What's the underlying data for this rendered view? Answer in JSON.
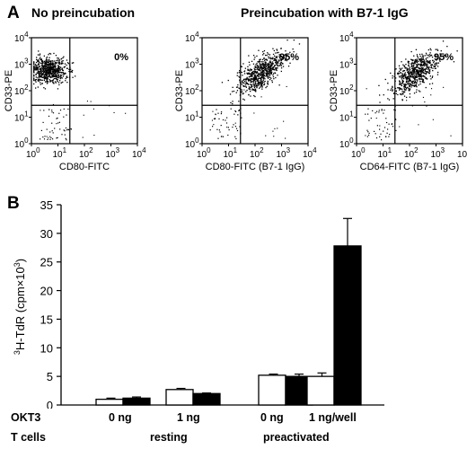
{
  "panel_a": {
    "letter": "A",
    "header_left": "No preincubation",
    "header_right": "Preincubation with B7-1 IgG",
    "plots": [
      {
        "ylabel": "CD33-PE",
        "xlabel": "CD80-FITC",
        "percent": "0%",
        "cluster": "upper-left"
      },
      {
        "ylabel": "CD33-PE",
        "xlabel": "CD80-FITC (B7-1 IgG)",
        "percent": "95%",
        "cluster": "upper-right"
      },
      {
        "ylabel": "CD33-PE",
        "xlabel": "CD64-FITC (B7-1 IgG)",
        "percent": "95%",
        "cluster": "upper-right"
      }
    ],
    "tick_base": "10",
    "tick_exponents": [
      "0",
      "1",
      "2",
      "3",
      "4"
    ]
  },
  "panel_b": {
    "letter": "B",
    "row_okt3": {
      "label": "OKT3",
      "values": [
        "0 ng",
        "1 ng",
        "0 ng",
        "1 ng/well"
      ]
    },
    "row_tcells": {
      "label": "T cells",
      "values": [
        "resting",
        "preactivated"
      ]
    }
  },
  "chart_data": [
    {
      "type": "scatter",
      "subtype": "flow-cytometry-dot-plot",
      "xlabel": "CD80-FITC",
      "ylabel": "CD33-PE",
      "xscale": "log",
      "yscale": "log",
      "xlim": [
        1,
        10000
      ],
      "ylim": [
        1,
        10000
      ],
      "annotation": "0%"
    },
    {
      "type": "scatter",
      "subtype": "flow-cytometry-dot-plot",
      "xlabel": "CD80-FITC (B7-1 IgG)",
      "ylabel": "CD33-PE",
      "xscale": "log",
      "yscale": "log",
      "xlim": [
        1,
        10000
      ],
      "ylim": [
        1,
        10000
      ],
      "annotation": "95%"
    },
    {
      "type": "scatter",
      "subtype": "flow-cytometry-dot-plot",
      "xlabel": "CD64-FITC (B7-1 IgG)",
      "ylabel": "CD33-PE",
      "xscale": "log",
      "yscale": "log",
      "xlim": [
        1,
        10000
      ],
      "ylim": [
        1,
        10000
      ],
      "annotation": "95%"
    },
    {
      "type": "bar",
      "ylabel_parts": {
        "sup1": "3",
        "main": "H-TdR (cpm×10",
        "sup2": "3",
        "close": ")"
      },
      "ylim": [
        0,
        35
      ],
      "yticks": [
        0,
        5,
        10,
        15,
        20,
        25,
        30,
        35
      ],
      "categories": [
        "0 ng",
        "1 ng",
        "0 ng",
        "1 ng/well"
      ],
      "series": [
        {
          "fill": "#ffffff",
          "values": [
            1.0,
            2.7,
            5.2,
            5.0
          ],
          "errors": [
            0.2,
            0.2,
            0.2,
            0.6
          ]
        },
        {
          "fill": "#000000",
          "values": [
            1.2,
            2.0,
            5.0,
            27.8
          ],
          "errors": [
            0.2,
            0.1,
            0.4,
            4.8
          ]
        }
      ]
    }
  ]
}
